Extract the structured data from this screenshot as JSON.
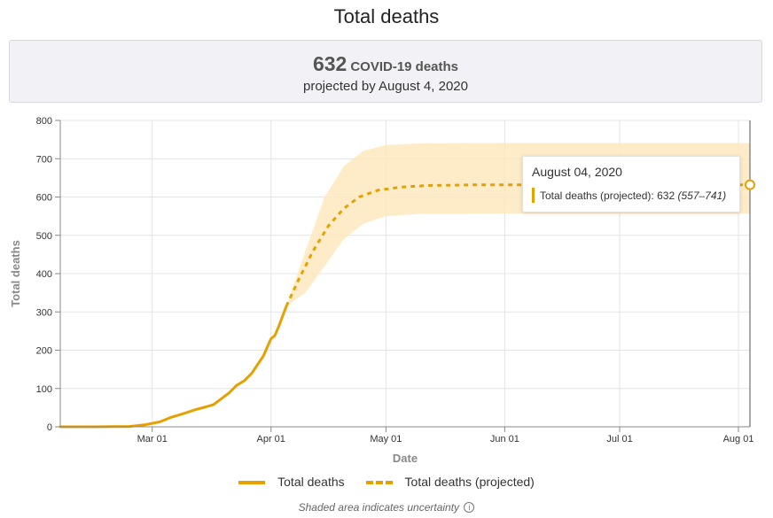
{
  "page": {
    "title": "Total deaths"
  },
  "summary": {
    "value": "632",
    "unit": "COVID-19 deaths",
    "subtitle": "projected by August 4, 2020"
  },
  "tooltip": {
    "date": "August 04, 2020",
    "label": "Total deaths (projected):",
    "value": "632",
    "range": "(557–741)"
  },
  "legend": {
    "actual": "Total deaths",
    "projected": "Total deaths (projected)"
  },
  "footnote": {
    "text": "Shaded area indicates uncertainty"
  },
  "colors": {
    "line": "#e6a100",
    "band": "#fde9bd",
    "grid": "#e4e4e4",
    "axis": "#888888"
  },
  "chart_data": {
    "type": "line",
    "xlabel": "Date",
    "ylabel": "Total deaths",
    "ylim": [
      0,
      800
    ],
    "yticks": [
      0,
      100,
      200,
      300,
      400,
      500,
      600,
      700,
      800
    ],
    "xlim": [
      "2020-02-06",
      "2020-08-04"
    ],
    "xticks": [
      {
        "date": "2020-03-01",
        "label": "Mar 01"
      },
      {
        "date": "2020-04-01",
        "label": "Apr 01"
      },
      {
        "date": "2020-05-01",
        "label": "May 01"
      },
      {
        "date": "2020-06-01",
        "label": "Jun 01"
      },
      {
        "date": "2020-07-01",
        "label": "Jul 01"
      },
      {
        "date": "2020-08-01",
        "label": "Aug 01"
      }
    ],
    "grid": true,
    "legend_position": "bottom",
    "series": [
      {
        "name": "Total deaths",
        "style": "solid",
        "points": [
          [
            "2020-02-06",
            0
          ],
          [
            "2020-02-15",
            0
          ],
          [
            "2020-02-24",
            1
          ],
          [
            "2020-02-28",
            5
          ],
          [
            "2020-03-03",
            13
          ],
          [
            "2020-03-06",
            25
          ],
          [
            "2020-03-09",
            34
          ],
          [
            "2020-03-12",
            44
          ],
          [
            "2020-03-15",
            52
          ],
          [
            "2020-03-17",
            58
          ],
          [
            "2020-03-19",
            73
          ],
          [
            "2020-03-21",
            88
          ],
          [
            "2020-03-23",
            108
          ],
          [
            "2020-03-25",
            120
          ],
          [
            "2020-03-27",
            140
          ],
          [
            "2020-03-28",
            155
          ],
          [
            "2020-03-30",
            185
          ],
          [
            "2020-04-01",
            230
          ],
          [
            "2020-04-02",
            238
          ],
          [
            "2020-04-03",
            262
          ],
          [
            "2020-04-04",
            288
          ],
          [
            "2020-04-05",
            315
          ]
        ]
      },
      {
        "name": "Total deaths (projected)",
        "style": "dashed",
        "points": [
          [
            "2020-04-05",
            315
          ],
          [
            "2020-04-08",
            380
          ],
          [
            "2020-04-12",
            460
          ],
          [
            "2020-04-16",
            525
          ],
          [
            "2020-04-20",
            570
          ],
          [
            "2020-04-24",
            600
          ],
          [
            "2020-04-29",
            618
          ],
          [
            "2020-05-05",
            626
          ],
          [
            "2020-05-12",
            630
          ],
          [
            "2020-05-25",
            632
          ],
          [
            "2020-06-15",
            632
          ],
          [
            "2020-07-15",
            632
          ],
          [
            "2020-08-04",
            632
          ]
        ]
      }
    ],
    "uncertainty": {
      "lower": [
        [
          "2020-04-05",
          315
        ],
        [
          "2020-04-10",
          350
        ],
        [
          "2020-04-15",
          420
        ],
        [
          "2020-04-20",
          490
        ],
        [
          "2020-04-25",
          530
        ],
        [
          "2020-05-01",
          550
        ],
        [
          "2020-05-10",
          556
        ],
        [
          "2020-06-01",
          557
        ],
        [
          "2020-08-04",
          557
        ]
      ],
      "upper": [
        [
          "2020-04-05",
          315
        ],
        [
          "2020-04-10",
          460
        ],
        [
          "2020-04-15",
          600
        ],
        [
          "2020-04-20",
          680
        ],
        [
          "2020-04-25",
          720
        ],
        [
          "2020-05-01",
          736
        ],
        [
          "2020-05-10",
          740
        ],
        [
          "2020-06-01",
          741
        ],
        [
          "2020-08-04",
          741
        ]
      ]
    },
    "highlight": {
      "date": "2020-08-04",
      "value": 632
    }
  }
}
